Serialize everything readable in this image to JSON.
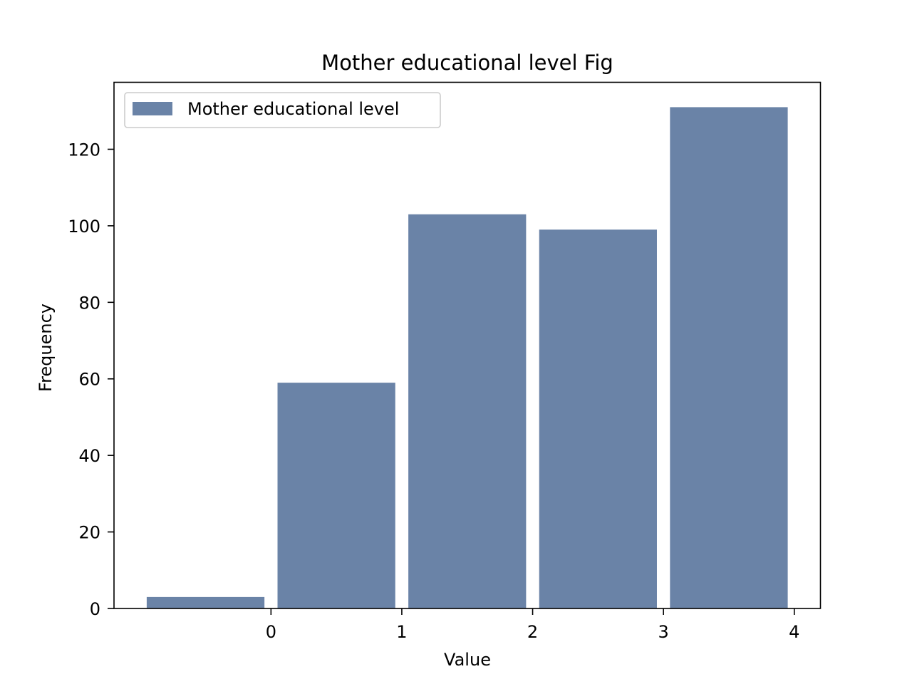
{
  "chart_data": {
    "type": "bar",
    "title": "Mother educational level Fig",
    "xlabel": "Value",
    "ylabel": "Frequency",
    "bar_color": "#6a83a7",
    "series": [
      {
        "name": "Mother educational level",
        "bins": [
          {
            "x0": -0.95,
            "x1": -0.05,
            "value": 3
          },
          {
            "x0": 0.05,
            "x1": 0.95,
            "value": 59
          },
          {
            "x0": 1.05,
            "x1": 1.95,
            "value": 103
          },
          {
            "x0": 2.05,
            "x1": 2.95,
            "value": 99
          },
          {
            "x0": 3.05,
            "x1": 3.95,
            "value": 131
          }
        ]
      }
    ],
    "xlim": [
      -1.2,
      4.2
    ],
    "ylim": [
      0,
      137.5
    ],
    "xticks": [
      0,
      1,
      2,
      3,
      4
    ],
    "yticks": [
      0,
      20,
      40,
      60,
      80,
      100,
      120
    ],
    "legend": "top-left",
    "grid": false
  }
}
